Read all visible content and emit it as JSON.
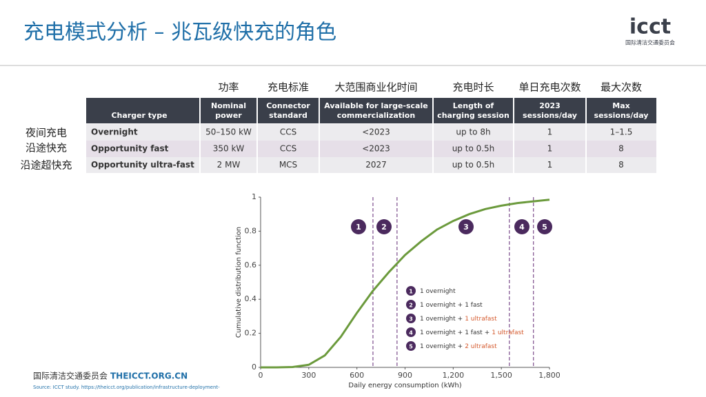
{
  "header": {
    "title": "充电模式分析 – 兆瓦级快充的角色",
    "logo": "icct",
    "logo_sub": "国际清洁交通委员会"
  },
  "table": {
    "cn_columns": [
      "功率",
      "充电标准",
      "大范围商业化时间",
      "充电时长",
      "单日充电次数",
      "最大次数"
    ],
    "cn_rows": [
      "夜间充电",
      "沿途快充",
      "沿途超快充"
    ],
    "columns": [
      [
        "Charger type"
      ],
      [
        "Nominal",
        "power"
      ],
      [
        "Connector",
        "standard"
      ],
      [
        "Available for large-scale",
        "commercialization"
      ],
      [
        "Length of",
        "charging session"
      ],
      [
        "2023",
        "sessions/day"
      ],
      [
        "Max",
        "sessions/day"
      ]
    ],
    "rows": [
      [
        "Overnight",
        "50–150 kW",
        "CCS",
        "<2023",
        "up to 8h",
        "1",
        "1–1.5"
      ],
      [
        "Opportunity fast",
        "350 kW",
        "CCS",
        "<2023",
        "up to 0.5h",
        "1",
        "8"
      ],
      [
        "Opportunity ultra-fast",
        "2 MW",
        "MCS",
        "2027",
        "up to 0.5h",
        "1",
        "8"
      ]
    ]
  },
  "chart_data": {
    "type": "line",
    "x_label": "Daily energy consumption (kWh)",
    "y_label": "Cumulative distribution function",
    "x": [
      0,
      100,
      200,
      300,
      400,
      500,
      600,
      700,
      800,
      900,
      1000,
      1100,
      1200,
      1300,
      1400,
      1500,
      1600,
      1700,
      1800
    ],
    "series": [
      {
        "color": "#6b9a3c",
        "values": [
          0,
          0,
          0.002,
          0.015,
          0.07,
          0.18,
          0.32,
          0.45,
          0.56,
          0.66,
          0.74,
          0.81,
          0.86,
          0.9,
          0.93,
          0.95,
          0.965,
          0.975,
          0.985
        ]
      }
    ],
    "xlim": [
      0,
      1800
    ],
    "ylim": [
      0,
      1
    ],
    "xticks": [
      0,
      300,
      600,
      900,
      {
        "value": 1200,
        "label": "1,200"
      },
      {
        "value": 1500,
        "label": "1,500"
      },
      {
        "value": 1800,
        "label": "1,800"
      }
    ],
    "yticks": [
      0,
      0.2,
      0.4,
      0.6,
      0.8,
      1
    ],
    "thresholds": [
      700,
      850,
      1550,
      1700
    ],
    "zones": [
      "1",
      "2",
      "3",
      "4",
      "5"
    ],
    "legend": [
      {
        "label": "1",
        "parts": [
          {
            "text": "1 overnight",
            "color": "#333333"
          }
        ]
      },
      {
        "label": "2",
        "parts": [
          {
            "text": "1 overnight",
            "color": "#333333"
          },
          {
            "text": "+",
            "color": "#333333"
          },
          {
            "text": "1 fast",
            "color": "#333333"
          }
        ]
      },
      {
        "label": "3",
        "parts": [
          {
            "text": "1 overnight",
            "color": "#333333"
          },
          {
            "text": "+",
            "color": "#333333"
          },
          {
            "text": "1 ultrafast",
            "color": "#d4572a"
          }
        ]
      },
      {
        "label": "4",
        "parts": [
          {
            "text": "1 overnight",
            "color": "#333333"
          },
          {
            "text": "+",
            "color": "#333333"
          },
          {
            "text": "1 fast",
            "color": "#333333"
          },
          {
            "text": "+",
            "color": "#333333"
          },
          {
            "text": "1 ultrafast",
            "color": "#d4572a"
          }
        ]
      },
      {
        "label": "5",
        "parts": [
          {
            "text": "1 overnight",
            "color": "#333333"
          },
          {
            "text": "+",
            "color": "#333333"
          },
          {
            "text": "2 ultrafast",
            "color": "#d4572a"
          }
        ]
      }
    ]
  },
  "footer": {
    "org": "国际清洁交通委员会",
    "site": "THEICCT.ORG.CN",
    "source": "Source: ICCT study. https://theicct.org/publication/infrastructure-deployment-"
  }
}
